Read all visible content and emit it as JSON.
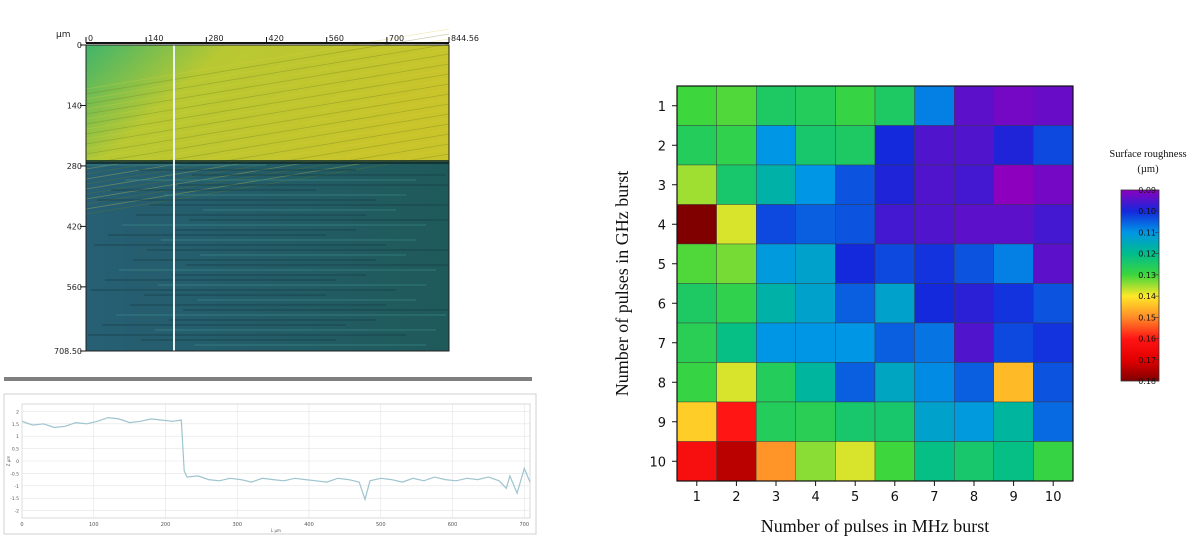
{
  "chart_data": [
    {
      "type": "image",
      "ylabel": "µm",
      "x_ticks": [
        "0",
        "140",
        "280",
        "420",
        "560",
        "700",
        "844.56"
      ],
      "y_ticks": [
        "0",
        "140",
        "280",
        "420",
        "560",
        "708.50"
      ],
      "xlim": [
        0,
        844.56
      ],
      "ylim": [
        0,
        708.5
      ],
      "colors": {
        "top_region": "#c9c42a",
        "bottom_region": "#1f5a5a",
        "marker_line": "#e8f4f4"
      }
    },
    {
      "type": "line",
      "xlabel": "L µm",
      "ylabel": "Z µm",
      "x_ticks": [
        "0",
        "100",
        "200",
        "300",
        "400",
        "500",
        "600",
        "700"
      ],
      "y_ticks": [
        "2",
        "1.5",
        "1",
        "0.5",
        "0",
        "-0.5",
        "-1",
        "-1.5",
        "-2"
      ],
      "xlim": [
        0,
        708
      ],
      "ylim": [
        -2.3,
        2.3
      ],
      "line_color": "#9ec4cf",
      "grid": true,
      "series": [
        {
          "name": "",
          "x": [
            0,
            15,
            30,
            45,
            60,
            75,
            90,
            105,
            120,
            135,
            150,
            165,
            180,
            195,
            210,
            222,
            226,
            230,
            245,
            260,
            275,
            290,
            305,
            320,
            335,
            350,
            365,
            380,
            395,
            410,
            425,
            440,
            455,
            470,
            478,
            485,
            500,
            515,
            530,
            545,
            560,
            575,
            590,
            605,
            620,
            635,
            650,
            665,
            675,
            680,
            690,
            700,
            708
          ],
          "y": [
            1.6,
            1.45,
            1.5,
            1.35,
            1.4,
            1.55,
            1.5,
            1.6,
            1.75,
            1.7,
            1.55,
            1.6,
            1.7,
            1.65,
            1.6,
            1.65,
            -0.4,
            -0.65,
            -0.6,
            -0.75,
            -0.8,
            -0.7,
            -0.75,
            -0.85,
            -0.7,
            -0.75,
            -0.8,
            -0.7,
            -0.75,
            -0.8,
            -0.85,
            -0.7,
            -0.75,
            -0.85,
            -1.55,
            -0.8,
            -0.7,
            -0.75,
            -0.85,
            -0.7,
            -0.8,
            -0.65,
            -0.75,
            -0.8,
            -0.7,
            -0.75,
            -0.65,
            -0.8,
            -1.1,
            -0.6,
            -1.3,
            -0.3,
            -0.85
          ]
        }
      ]
    },
    {
      "type": "heatmap",
      "xlabel": "Number of pulses in MHz burst",
      "ylabel": "Number of pulses in GHz burst",
      "x": [
        1,
        2,
        3,
        4,
        5,
        6,
        7,
        8,
        9,
        10
      ],
      "y": [
        1,
        2,
        3,
        4,
        5,
        6,
        7,
        8,
        9,
        10
      ],
      "values": [
        [
          0.13,
          0.131,
          0.125,
          0.126,
          0.129,
          0.125,
          0.108,
          0.094,
          0.092,
          0.093
        ],
        [
          0.126,
          0.128,
          0.11,
          0.124,
          0.125,
          0.1,
          0.095,
          0.095,
          0.099,
          0.103
        ],
        [
          0.135,
          0.124,
          0.117,
          0.11,
          0.104,
          0.099,
          0.095,
          0.096,
          0.09,
          0.092
        ],
        [
          0.18,
          0.138,
          0.103,
          0.105,
          0.104,
          0.096,
          0.095,
          0.094,
          0.094,
          0.096
        ],
        [
          0.131,
          0.133,
          0.111,
          0.113,
          0.1,
          0.103,
          0.101,
          0.104,
          0.108,
          0.094
        ],
        [
          0.125,
          0.128,
          0.117,
          0.113,
          0.105,
          0.113,
          0.1,
          0.098,
          0.101,
          0.104
        ],
        [
          0.127,
          0.121,
          0.11,
          0.11,
          0.11,
          0.105,
          0.107,
          0.095,
          0.103,
          0.101
        ],
        [
          0.129,
          0.138,
          0.126,
          0.118,
          0.105,
          0.114,
          0.109,
          0.105,
          0.145,
          0.104
        ],
        [
          0.143,
          0.16,
          0.126,
          0.127,
          0.124,
          0.124,
          0.113,
          0.111,
          0.118,
          0.106
        ],
        [
          0.163,
          0.174,
          0.149,
          0.134,
          0.138,
          0.13,
          0.121,
          0.124,
          0.121,
          0.129
        ]
      ],
      "colorbar": {
        "title_line1": "Surface roughness",
        "title_line2": "(µm)",
        "ticks": [
          "0.09",
          "0.10",
          "0.11",
          "0.12",
          "0.13",
          "0.14",
          "0.15",
          "0.16",
          "0.17",
          "0.18"
        ],
        "range": [
          0.09,
          0.18
        ]
      },
      "grid": false
    }
  ],
  "colors": {
    "separator": "#7f7f7f"
  }
}
